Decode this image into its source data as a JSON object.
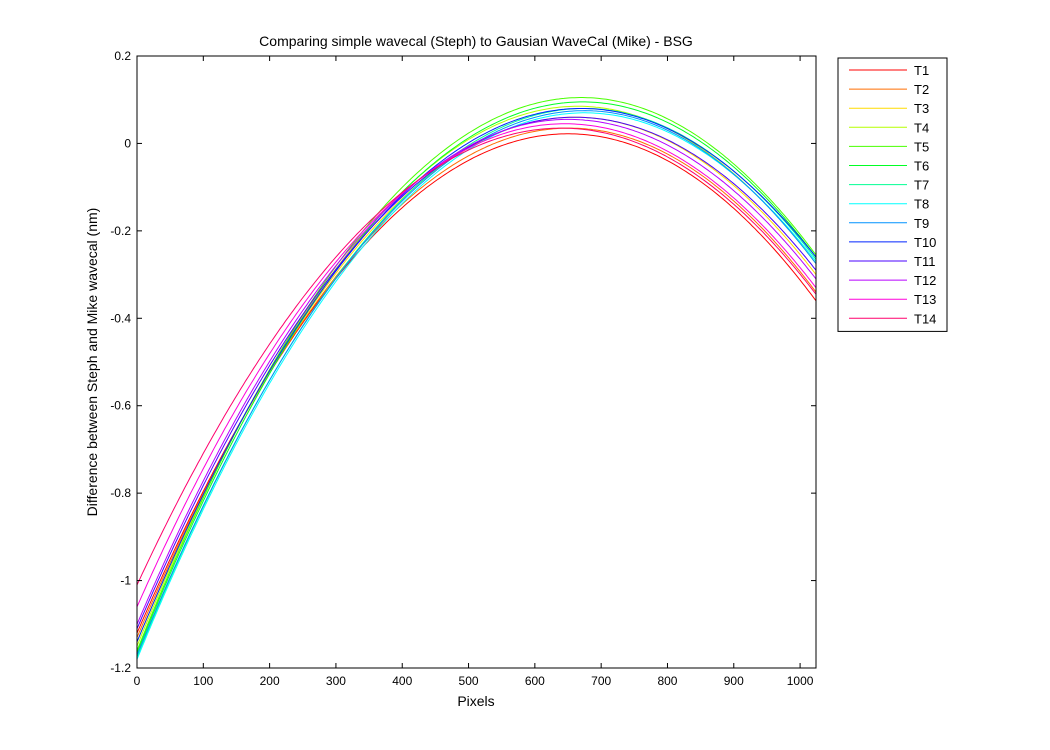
{
  "chart_data": {
    "type": "line",
    "title": "Comparing simple wavecal (Steph) to Gausian WaveCal (Mike) - BSG",
    "xlabel": "Pixels",
    "ylabel": "Difference between Steph and Mike wavecal (nm)",
    "xlim": [
      0,
      1024
    ],
    "ylim": [
      -1.2,
      0.2
    ],
    "xticks": [
      0,
      100,
      200,
      300,
      400,
      500,
      600,
      700,
      800,
      900,
      1000
    ],
    "yticks": [
      -1.2,
      -1,
      -0.8,
      -0.6,
      -0.4,
      -0.2,
      0,
      0.2
    ],
    "xtick_labels": [
      "0",
      "100",
      "200",
      "300",
      "400",
      "500",
      "600",
      "700",
      "800",
      "900",
      "1000"
    ],
    "ytick_labels": [
      "-1.2",
      "-1",
      "-0.8",
      "-0.6",
      "-0.4",
      "-0.2",
      "0",
      "0.2"
    ],
    "grid": false,
    "legend_position": "outside-top-right",
    "series": [
      {
        "name": "T1",
        "color": "#ff0000",
        "y_start": -1.12,
        "peak_x": 650,
        "peak_y": 0.022,
        "y_end": -0.36
      },
      {
        "name": "T2",
        "color": "#ff6d00",
        "y_start": -1.13,
        "peak_x": 652,
        "peak_y": 0.035,
        "y_end": -0.34
      },
      {
        "name": "T3",
        "color": "#ffdb00",
        "y_start": -1.14,
        "peak_x": 660,
        "peak_y": 0.06,
        "y_end": -0.3
      },
      {
        "name": "T4",
        "color": "#b6ff00",
        "y_start": -1.15,
        "peak_x": 665,
        "peak_y": 0.085,
        "y_end": -0.275
      },
      {
        "name": "T5",
        "color": "#49ff00",
        "y_start": -1.16,
        "peak_x": 670,
        "peak_y": 0.105,
        "y_end": -0.255
      },
      {
        "name": "T6",
        "color": "#00ff24",
        "y_start": -1.165,
        "peak_x": 672,
        "peak_y": 0.095,
        "y_end": -0.26
      },
      {
        "name": "T7",
        "color": "#00ff92",
        "y_start": -1.175,
        "peak_x": 675,
        "peak_y": 0.08,
        "y_end": -0.265
      },
      {
        "name": "T8",
        "color": "#00ffff",
        "y_start": -1.18,
        "peak_x": 675,
        "peak_y": 0.07,
        "y_end": -0.27
      },
      {
        "name": "T9",
        "color": "#0092ff",
        "y_start": -1.17,
        "peak_x": 675,
        "peak_y": 0.075,
        "y_end": -0.275
      },
      {
        "name": "T10",
        "color": "#0024ff",
        "y_start": -1.14,
        "peak_x": 670,
        "peak_y": 0.08,
        "y_end": -0.26
      },
      {
        "name": "T11",
        "color": "#4900ff",
        "y_start": -1.11,
        "peak_x": 660,
        "peak_y": 0.06,
        "y_end": -0.29
      },
      {
        "name": "T12",
        "color": "#b600ff",
        "y_start": -1.1,
        "peak_x": 650,
        "peak_y": 0.055,
        "y_end": -0.31
      },
      {
        "name": "T13",
        "color": "#ff00db",
        "y_start": -1.06,
        "peak_x": 645,
        "peak_y": 0.045,
        "y_end": -0.33
      },
      {
        "name": "T14",
        "color": "#ff006d",
        "y_start": -1.01,
        "peak_x": 640,
        "peak_y": 0.035,
        "y_end": -0.345
      }
    ]
  }
}
